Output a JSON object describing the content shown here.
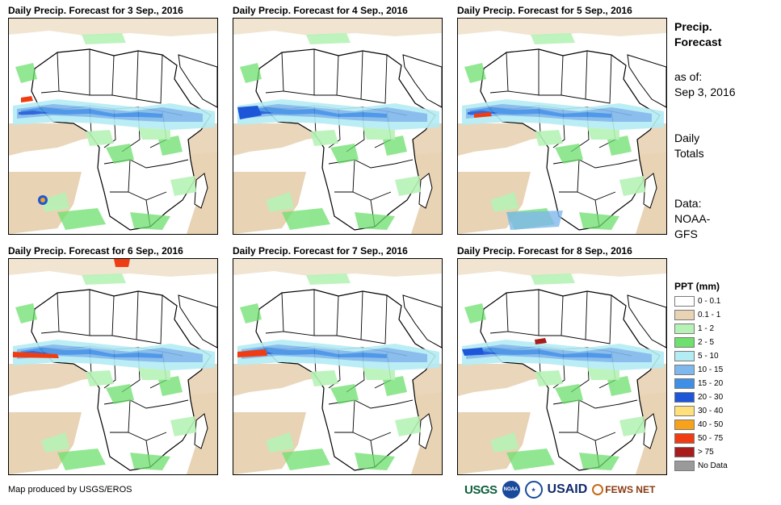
{
  "panels": [
    {
      "title": "Daily Precip. Forecast for 3 Sep., 2016"
    },
    {
      "title": "Daily Precip. Forecast for 4 Sep., 2016"
    },
    {
      "title": "Daily Precip. Forecast for 5 Sep., 2016"
    },
    {
      "title": "Daily Precip. Forecast for 6 Sep., 2016"
    },
    {
      "title": "Daily Precip. Forecast for 7 Sep., 2016"
    },
    {
      "title": "Daily Precip. Forecast for 8 Sep., 2016"
    }
  ],
  "sidebar": {
    "title_line1": "Precip.",
    "title_line2": "Forecast",
    "asof_label": "as of:",
    "asof_date": "Sep 3, 2016",
    "daily_line1": "Daily",
    "daily_line2": "Totals",
    "data_line1": "Data:",
    "data_line2": "NOAA-",
    "data_line3": "GFS"
  },
  "legend": {
    "title": "PPT (mm)",
    "items": [
      {
        "label": "0 - 0.1",
        "color": "#ffffff"
      },
      {
        "label": "0.1 - 1",
        "color": "#e8d3b4"
      },
      {
        "label": "1 - 2",
        "color": "#b6f2b6"
      },
      {
        "label": "2 - 5",
        "color": "#6de06d"
      },
      {
        "label": "5 - 10",
        "color": "#b4ecf4"
      },
      {
        "label": "10 - 15",
        "color": "#7fb8ec"
      },
      {
        "label": "15 - 20",
        "color": "#3f8fe6"
      },
      {
        "label": "20 - 30",
        "color": "#1e56d8"
      },
      {
        "label": "30 - 40",
        "color": "#ffe07a"
      },
      {
        "label": "40 - 50",
        "color": "#f7a21a"
      },
      {
        "label": "50 - 75",
        "color": "#f03c12"
      },
      {
        "label": "> 75",
        "color": "#a81c1c"
      },
      {
        "label": "No Data",
        "color": "#9a9a9a"
      }
    ]
  },
  "footer": {
    "credit": "Map produced by USGS/EROS",
    "logo_usgs": "USGS",
    "logo_noaa": "NOAA",
    "logo_usaid": "USAID",
    "logo_fews": "FEWS NET"
  }
}
